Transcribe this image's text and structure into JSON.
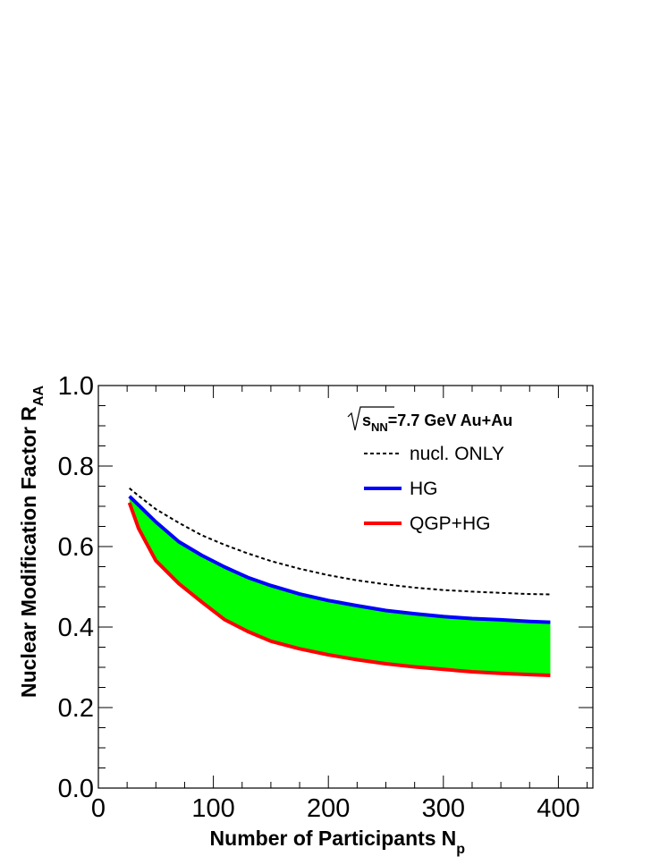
{
  "chart_data": {
    "type": "area",
    "xlabel": "Number of Participants",
    "xlabel_sub": "p",
    "xlabel_main": "N",
    "ylabel": "Nuclear Modification Factor R",
    "ylabel_sub": "AA",
    "xlim": [
      0,
      430
    ],
    "ylim": [
      0.0,
      1.0
    ],
    "x_ticks": [
      "0",
      "100",
      "200",
      "300",
      "400"
    ],
    "y_ticks": [
      "0.0",
      "0.2",
      "0.4",
      "0.6",
      "0.8",
      "1.0"
    ],
    "energy_label": {
      "sqrt_s": "s",
      "sub": "NN",
      "text": "=7.7 GeV Au+Au"
    },
    "legend": {
      "position": "top-right",
      "entries": [
        {
          "name": "nucl. ONLY",
          "style": "dashed",
          "color": "#000000"
        },
        {
          "name": "HG",
          "style": "solid",
          "color": "#0000ff"
        },
        {
          "name": "QGP+HG",
          "style": "solid",
          "color": "#ff0000"
        }
      ]
    },
    "band_color": "#00ff00",
    "series": [
      {
        "name": "nucl. ONLY",
        "x": [
          27,
          35,
          50,
          70,
          90,
          110,
          130,
          150,
          175,
          200,
          225,
          250,
          275,
          300,
          325,
          350,
          375,
          393
        ],
        "y": [
          0.745,
          0.726,
          0.693,
          0.659,
          0.628,
          0.604,
          0.583,
          0.564,
          0.545,
          0.529,
          0.516,
          0.506,
          0.498,
          0.492,
          0.488,
          0.485,
          0.482,
          0.481
        ]
      },
      {
        "name": "HG",
        "x": [
          27,
          35,
          50,
          70,
          90,
          110,
          130,
          150,
          175,
          200,
          225,
          250,
          275,
          300,
          325,
          350,
          375,
          393
        ],
        "y": [
          0.725,
          0.703,
          0.661,
          0.612,
          0.578,
          0.549,
          0.523,
          0.503,
          0.482,
          0.466,
          0.453,
          0.441,
          0.433,
          0.426,
          0.421,
          0.418,
          0.414,
          0.412
        ]
      },
      {
        "name": "QGP+HG",
        "x": [
          27,
          35,
          50,
          70,
          90,
          110,
          130,
          150,
          175,
          200,
          225,
          250,
          275,
          300,
          325,
          350,
          375,
          393
        ],
        "y": [
          0.709,
          0.645,
          0.565,
          0.508,
          0.462,
          0.418,
          0.389,
          0.365,
          0.346,
          0.331,
          0.319,
          0.309,
          0.301,
          0.295,
          0.289,
          0.285,
          0.282,
          0.28
        ]
      }
    ]
  }
}
